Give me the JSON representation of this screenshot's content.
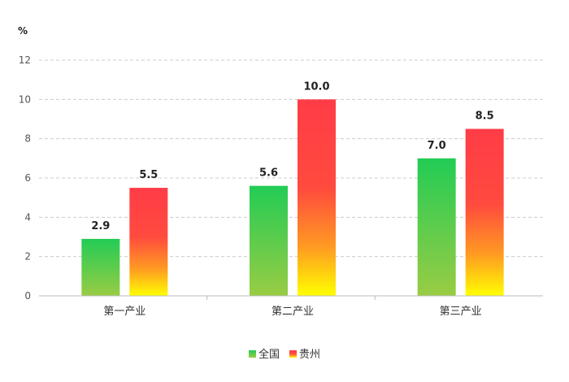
{
  "chart_data": {
    "type": "bar",
    "unit_label": "%",
    "categories": [
      "第一产业",
      "第二产业",
      "第三产业"
    ],
    "series": [
      {
        "name": "全国",
        "values": [
          2.9,
          5.6,
          7.0
        ]
      },
      {
        "name": "贵州",
        "values": [
          5.5,
          10.0,
          8.5
        ]
      }
    ],
    "ylim": [
      0,
      12
    ],
    "yticks": [
      0,
      2,
      4,
      6,
      8,
      10,
      12
    ],
    "grid": true,
    "legend_position": "bottom-center",
    "colors": {
      "全国": {
        "top": "#22cc55",
        "bottom": "#99cc44"
      },
      "贵州": {
        "top": "#ff3c46",
        "mid": "#ff6a2e",
        "bottom": "#ffff00"
      },
      "grid": "#cccccc",
      "axis": "#bbbbbb"
    }
  }
}
